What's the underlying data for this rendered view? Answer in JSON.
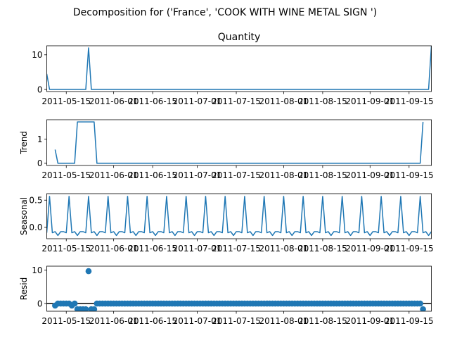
{
  "figure": {
    "suptitle": "Decomposition for ('France', 'COOK WITH WINE METAL SIGN ')"
  },
  "colors": {
    "series": "#1f77b4",
    "axis": "#000000",
    "background": "#ffffff"
  },
  "x_axis": {
    "start": "2011-05-08",
    "end": "2011-09-23",
    "ticks": [
      "2011-05-15",
      "2011-06-01",
      "2011-06-15",
      "2011-07-01",
      "2011-07-15",
      "2011-08-01",
      "2011-08-15",
      "2011-09-01",
      "2011-09-15"
    ]
  },
  "chart_data": [
    {
      "type": "line",
      "title": "Quantity",
      "ylabel": "",
      "ylim": [
        -0.6,
        12.6
      ],
      "yticks": [
        "0",
        "10"
      ],
      "ytick_values": [
        0,
        10
      ],
      "points": [
        [
          "2011-05-08",
          4.5
        ],
        [
          "2011-05-09",
          0
        ],
        [
          "2011-05-10",
          0
        ],
        [
          "2011-05-12",
          0
        ],
        [
          "2011-05-15",
          0
        ],
        [
          "2011-05-20",
          0
        ],
        [
          "2011-05-22",
          0
        ],
        [
          "2011-05-23",
          12
        ],
        [
          "2011-05-24",
          0
        ],
        [
          "2011-06-01",
          0
        ],
        [
          "2011-06-15",
          0
        ],
        [
          "2011-07-01",
          0
        ],
        [
          "2011-07-15",
          0
        ],
        [
          "2011-08-01",
          0
        ],
        [
          "2011-08-15",
          0
        ],
        [
          "2011-09-01",
          0
        ],
        [
          "2011-09-15",
          0
        ],
        [
          "2011-09-22",
          0
        ],
        [
          "2011-09-23",
          12.5
        ]
      ]
    },
    {
      "type": "line",
      "title": "",
      "ylabel": "Trend",
      "ylim": [
        -0.09,
        1.81
      ],
      "yticks": [
        "0",
        "1"
      ],
      "ytick_values": [
        0,
        1
      ],
      "points": [
        [
          "2011-05-11",
          0.57
        ],
        [
          "2011-05-12",
          0
        ],
        [
          "2011-05-14",
          0
        ],
        [
          "2011-05-18",
          0
        ],
        [
          "2011-05-19",
          1.72
        ],
        [
          "2011-05-25",
          1.72
        ],
        [
          "2011-05-26",
          0
        ],
        [
          "2011-06-01",
          0
        ],
        [
          "2011-06-15",
          0
        ],
        [
          "2011-07-01",
          0
        ],
        [
          "2011-07-15",
          0
        ],
        [
          "2011-08-01",
          0
        ],
        [
          "2011-08-15",
          0
        ],
        [
          "2011-09-01",
          0
        ],
        [
          "2011-09-15",
          0
        ],
        [
          "2011-09-19",
          0
        ],
        [
          "2011-09-20",
          1.72
        ]
      ]
    },
    {
      "type": "line",
      "title": "",
      "ylabel": "Seasonal",
      "ylim": [
        -0.21,
        0.62
      ],
      "yticks": [
        "0.0",
        "0.5"
      ],
      "ytick_values": [
        0,
        0.5
      ],
      "period_start": "2011-05-08",
      "period_days": 7,
      "pattern": [
        -0.1,
        0.57,
        -0.1,
        -0.08,
        -0.15,
        -0.08,
        -0.08
      ]
    },
    {
      "type": "scatter",
      "title": "",
      "ylabel": "Resid",
      "ylim": [
        -2.3,
        11.2
      ],
      "yticks": [
        "0",
        "10"
      ],
      "ytick_values": [
        0,
        10
      ],
      "zero_line": true,
      "x_range": [
        "2011-05-11",
        "2011-09-20"
      ],
      "baseline": 0,
      "outliers": [
        [
          "2011-05-11",
          -0.6
        ],
        [
          "2011-05-17",
          -0.6
        ],
        [
          "2011-05-19",
          -1.7
        ],
        [
          "2011-05-20",
          -1.7
        ],
        [
          "2011-05-21",
          -1.7
        ],
        [
          "2011-05-22",
          -1.7
        ],
        [
          "2011-05-23",
          9.7
        ],
        [
          "2011-05-24",
          -1.7
        ],
        [
          "2011-05-25",
          -1.7
        ],
        [
          "2011-09-20",
          -1.7
        ]
      ]
    }
  ]
}
